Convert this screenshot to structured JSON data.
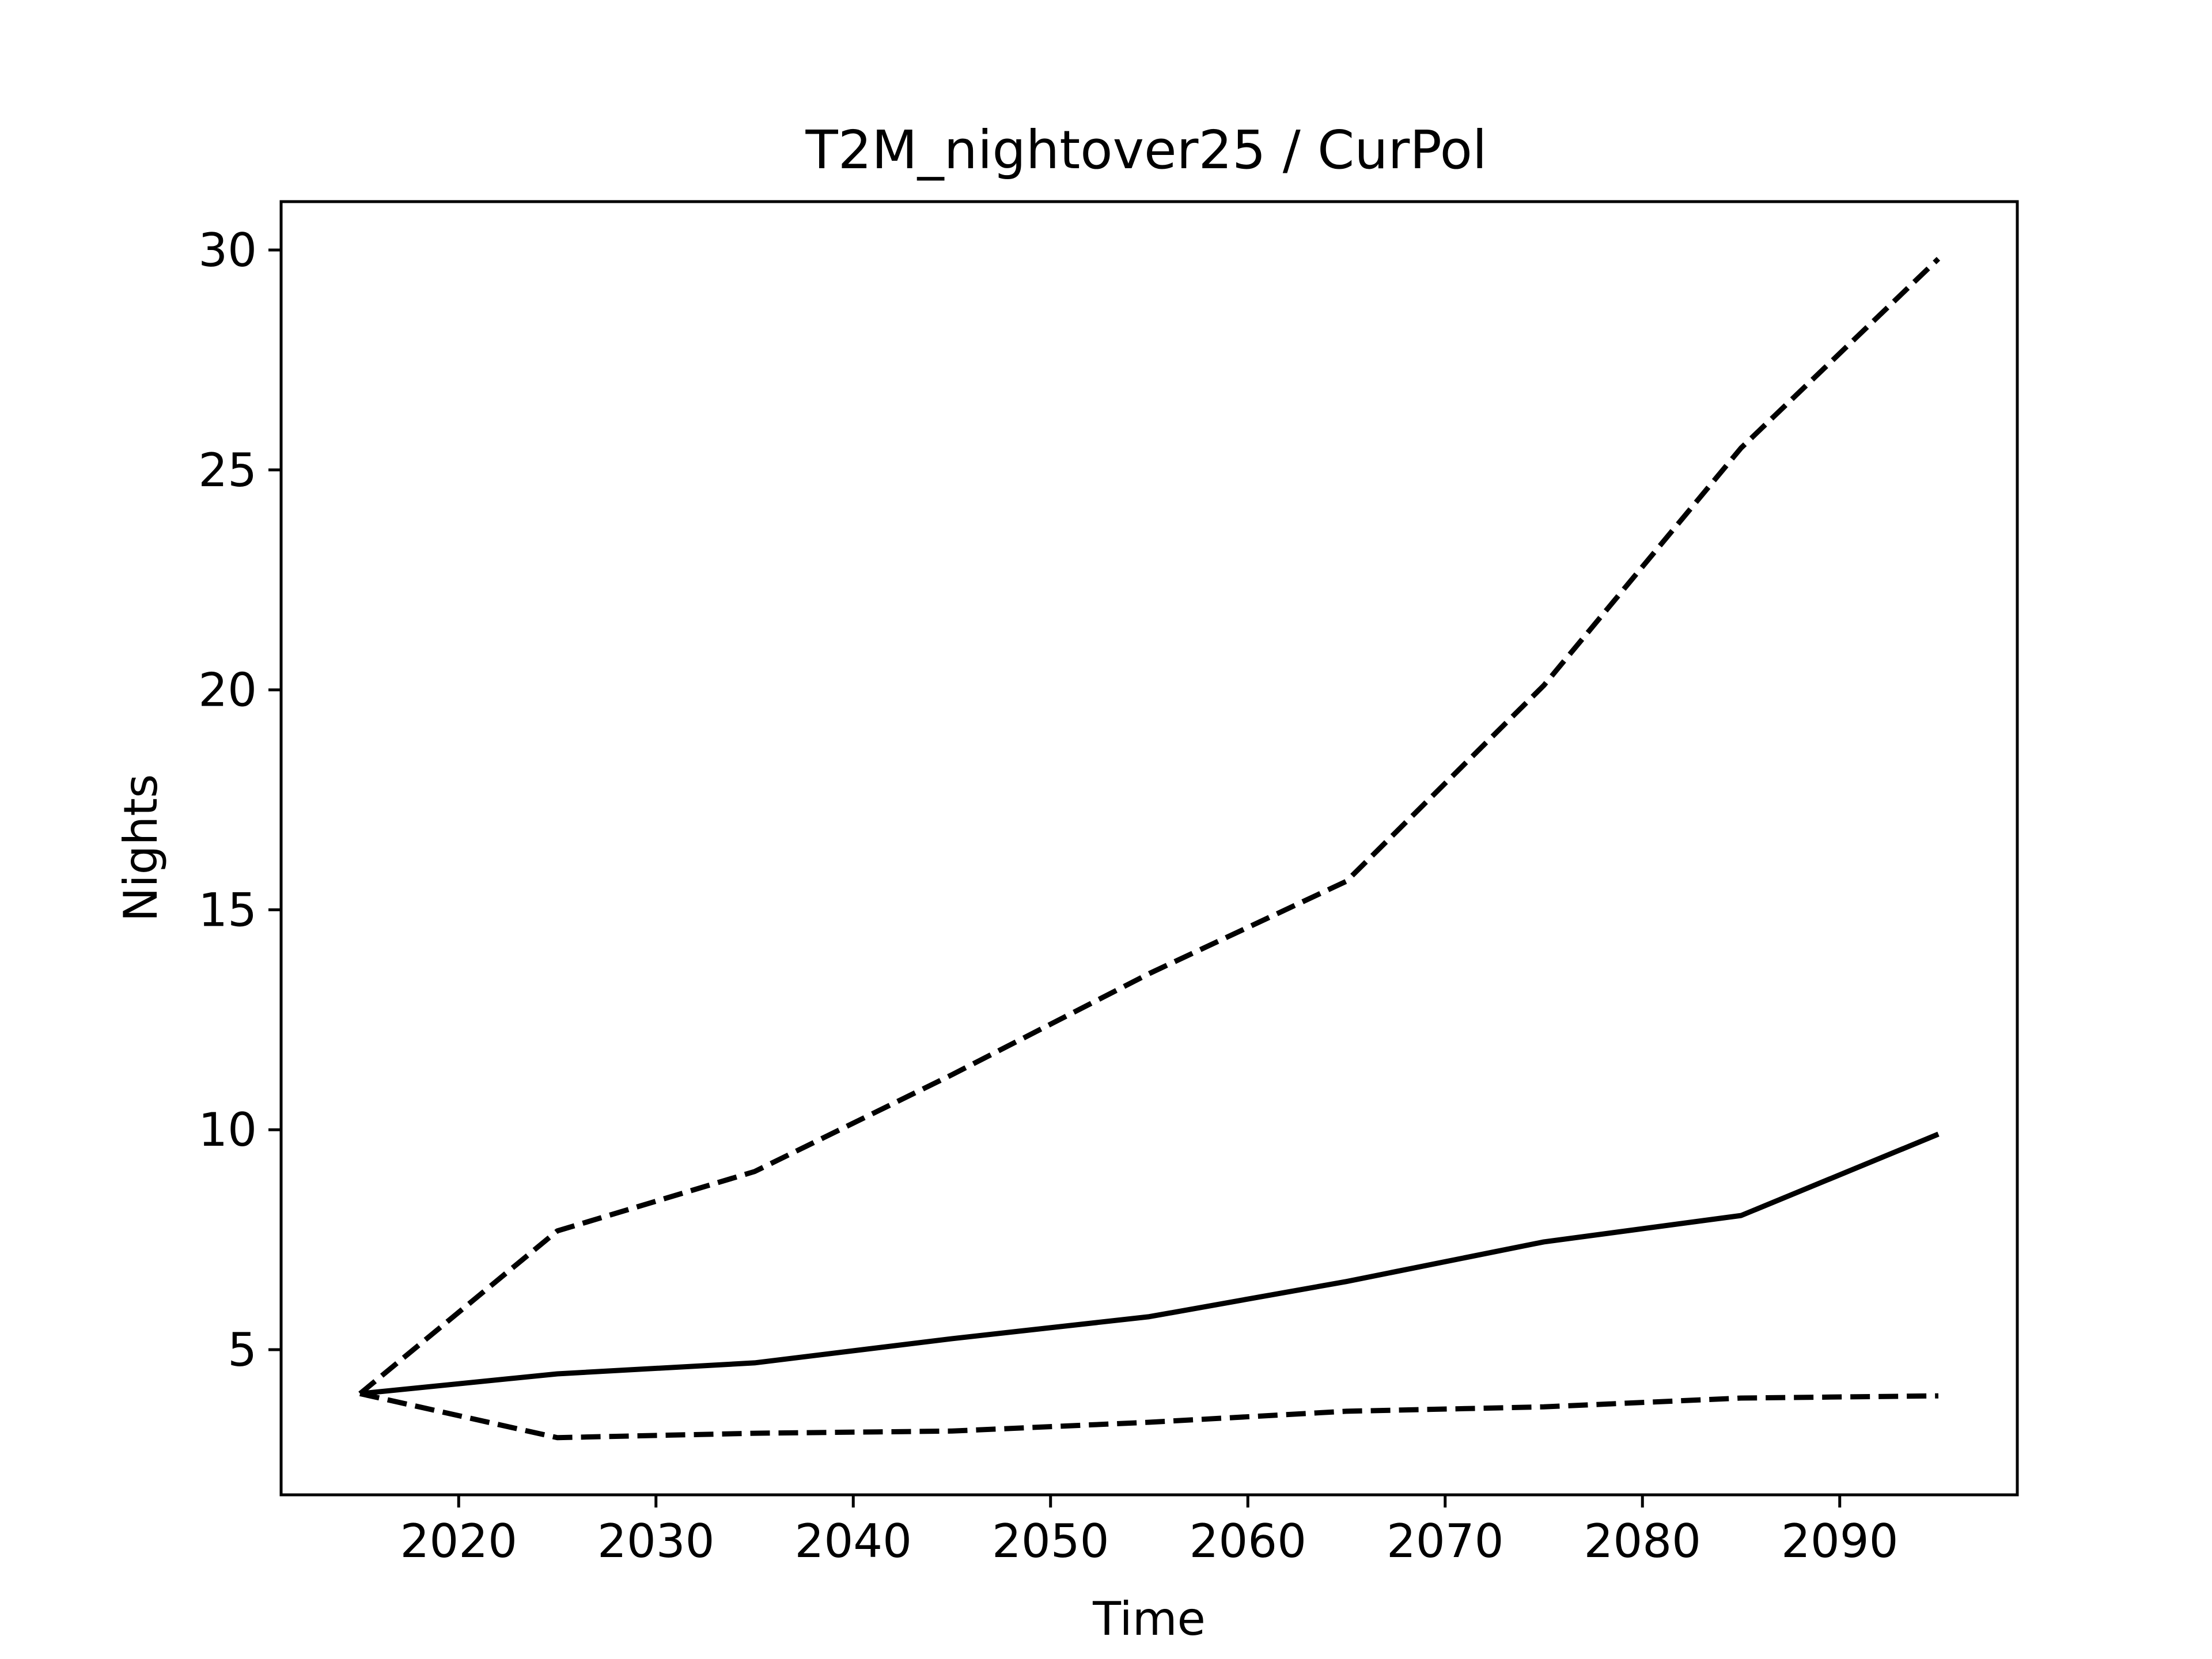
{
  "chart_data": {
    "type": "line",
    "title": "T2M_nightover25 / CurPol",
    "xlabel": "Time",
    "ylabel": "Nights",
    "xlim": [
      2011,
      2099
    ],
    "ylim": [
      1.7,
      31.1
    ],
    "xticks": [
      2020,
      2030,
      2040,
      2050,
      2060,
      2070,
      2080,
      2090
    ],
    "yticks": [
      5,
      10,
      15,
      20,
      25,
      30
    ],
    "grid": false,
    "x": [
      2015,
      2025,
      2035,
      2045,
      2055,
      2065,
      2075,
      2085,
      2095
    ],
    "series": [
      {
        "style": "solid",
        "color": "#000000",
        "values": [
          4.0,
          4.45,
          4.7,
          5.25,
          5.75,
          6.55,
          7.45,
          8.05,
          9.9
        ]
      },
      {
        "style": "dashed",
        "color": "#000000",
        "values": [
          4.0,
          7.7,
          9.05,
          11.25,
          13.55,
          15.65,
          20.1,
          25.5,
          29.8
        ]
      },
      {
        "style": "dashed",
        "color": "#000000",
        "values": [
          4.0,
          3.0,
          3.1,
          3.15,
          3.35,
          3.6,
          3.7,
          3.9,
          3.95
        ]
      }
    ]
  }
}
